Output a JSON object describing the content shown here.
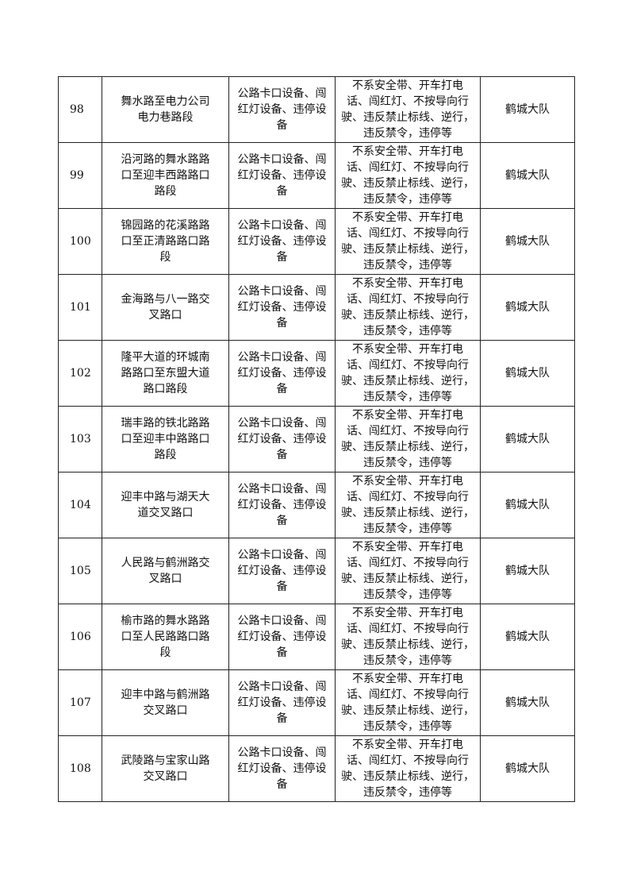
{
  "rows": [
    {
      "no": "98",
      "location": "舞水路至电力公司\n电力巷路段",
      "equipment": "公路卡口设备、闯\n红灯设备、违停设\n备",
      "violations": "不系安全带、开车打电\n话、闯红灯、不按导向行\n驶、违反禁止标线、逆行，\n违反禁令，违停等",
      "unit": "鹤城大队"
    },
    {
      "no": "99",
      "location": "沿河路的舞水路路\n口至迎丰西路路口\n路段",
      "equipment": "公路卡口设备、闯\n红灯设备、违停设\n备",
      "violations": "不系安全带、开车打电\n话、闯红灯、不按导向行\n驶、违反禁止标线、逆行，\n违反禁令，违停等",
      "unit": "鹤城大队"
    },
    {
      "no": "100",
      "location": "锦园路的花溪路路\n口至正清路路口路\n段",
      "equipment": "公路卡口设备、闯\n红灯设备、违停设\n备",
      "violations": "不系安全带、开车打电\n话、闯红灯、不按导向行\n驶、违反禁止标线、逆行，\n违反禁令，违停等",
      "unit": "鹤城大队"
    },
    {
      "no": "101",
      "location": "金海路与八一路交\n叉路口",
      "equipment": "公路卡口设备、闯\n红灯设备、违停设\n备",
      "violations": "不系安全带、开车打电\n话、闯红灯、不按导向行\n驶、违反禁止标线、逆行，\n违反禁令，违停等",
      "unit": "鹤城大队"
    },
    {
      "no": "102",
      "location": "隆平大道的环城南\n路路口至东盟大道\n路口路段",
      "equipment": "公路卡口设备、闯\n红灯设备、违停设\n备",
      "violations": "不系安全带、开车打电\n话、闯红灯、不按导向行\n驶、违反禁止标线、逆行，\n违反禁令，违停等",
      "unit": "鹤城大队"
    },
    {
      "no": "103",
      "location": "瑞丰路的铁北路路\n口至迎丰中路路口\n路段",
      "equipment": "公路卡口设备、闯\n红灯设备、违停设\n备",
      "violations": "不系安全带、开车打电\n话、闯红灯、不按导向行\n驶、违反禁止标线、逆行，\n违反禁令，违停等",
      "unit": "鹤城大队"
    },
    {
      "no": "104",
      "location": "迎丰中路与湖天大\n道交叉路口",
      "equipment": "公路卡口设备、闯\n红灯设备、违停设\n备",
      "violations": "不系安全带、开车打电\n话、闯红灯、不按导向行\n驶、违反禁止标线、逆行，\n违反禁令，违停等",
      "unit": "鹤城大队"
    },
    {
      "no": "105",
      "location": "人民路与鹤洲路交\n叉路口",
      "equipment": "公路卡口设备、闯\n红灯设备、违停设\n备",
      "violations": "不系安全带、开车打电\n话、闯红灯、不按导向行\n驶、违反禁止标线、逆行，\n违反禁令，违停等",
      "unit": "鹤城大队"
    },
    {
      "no": "106",
      "location": "榆市路的舞水路路\n口至人民路路口路\n段",
      "equipment": "公路卡口设备、闯\n红灯设备、违停设\n备",
      "violations": "不系安全带、开车打电\n话、闯红灯、不按导向行\n驶、违反禁止标线、逆行，\n违反禁令，违停等",
      "unit": "鹤城大队"
    },
    {
      "no": "107",
      "location": "迎丰中路与鹤洲路\n交叉路口",
      "equipment": "公路卡口设备、闯\n红灯设备、违停设\n备",
      "violations": "不系安全带、开车打电\n话、闯红灯、不按导向行\n驶、违反禁止标线、逆行，\n违反禁令，违停等",
      "unit": "鹤城大队"
    },
    {
      "no": "108",
      "location": "武陵路与宝家山路\n交叉路口",
      "equipment": "公路卡口设备、闯\n红灯设备、违停设\n备",
      "violations": "不系安全带、开车打电\n话、闯红灯、不按导向行\n驶、违反禁止标线、逆行，\n违反禁令，违停等",
      "unit": "鹤城大队"
    }
  ]
}
